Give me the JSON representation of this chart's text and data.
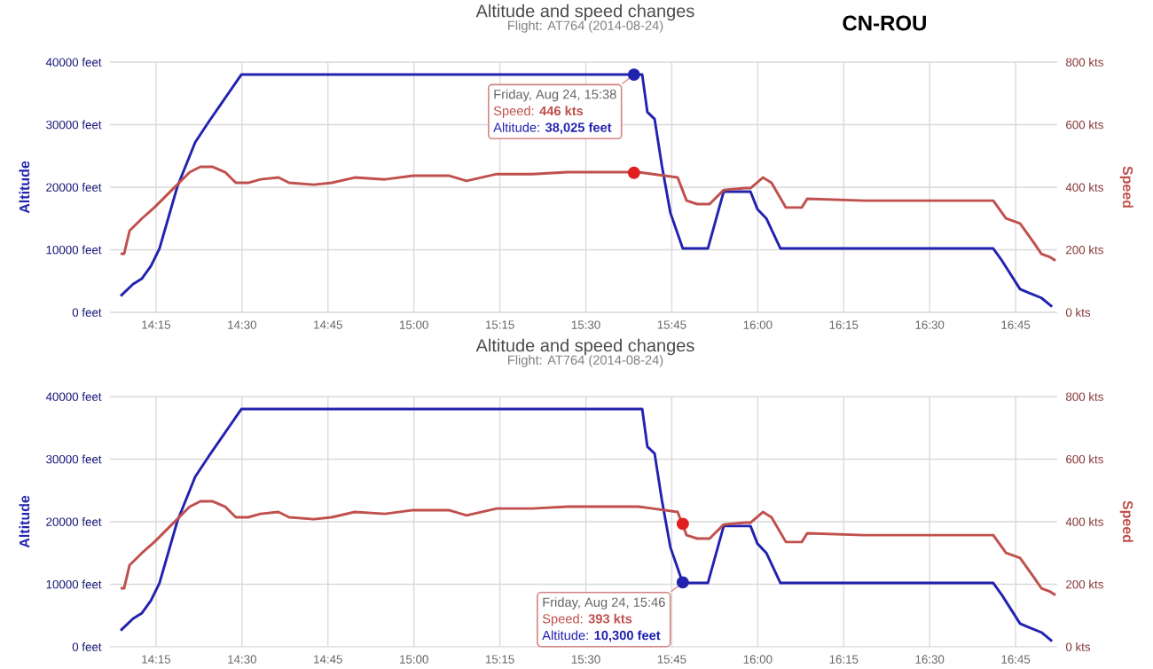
{
  "chart_data": [
    {
      "type": "line",
      "title": "Altitude and speed changes",
      "subtitle": "Flight: AT764 (2014-08-24)",
      "ylabel": "Altitude",
      "y2label": "Speed",
      "grid": true,
      "xlim": [
        14.116,
        16.871
      ],
      "xticks": [
        {
          "value": 14.25,
          "label": "14:15"
        },
        {
          "value": 14.5,
          "label": "14:30"
        },
        {
          "value": 14.75,
          "label": "14:45"
        },
        {
          "value": 15.0,
          "label": "15:00"
        },
        {
          "value": 15.25,
          "label": "15:15"
        },
        {
          "value": 15.5,
          "label": "15:30"
        },
        {
          "value": 15.75,
          "label": "15:45"
        },
        {
          "value": 16.0,
          "label": "16:00"
        },
        {
          "value": 16.25,
          "label": "16:15"
        },
        {
          "value": 16.5,
          "label": "16:30"
        },
        {
          "value": 16.75,
          "label": "16:45"
        }
      ],
      "ylim": [
        0,
        40000
      ],
      "yticks": [
        {
          "value": 0,
          "label": "0 feet"
        },
        {
          "value": 10000,
          "label": "10000 feet"
        },
        {
          "value": 20000,
          "label": "20000 feet"
        },
        {
          "value": 30000,
          "label": "30000 feet"
        },
        {
          "value": 40000,
          "label": "40000 feet"
        }
      ],
      "y2lim": [
        0,
        800
      ],
      "y2ticks": [
        {
          "value": 0,
          "label": "0 kts"
        },
        {
          "value": 200,
          "label": "200 kts"
        },
        {
          "value": 400,
          "label": "400 kts"
        },
        {
          "value": 600,
          "label": "600 kts"
        },
        {
          "value": 800,
          "label": "800 kts"
        }
      ],
      "series": [
        {
          "color": "#2222b0",
          "x": [
            14.147,
            14.183,
            14.209,
            14.235,
            14.26,
            14.312,
            14.364,
            14.405,
            14.498,
            15.664,
            15.679,
            15.7,
            15.721,
            15.746,
            15.782,
            15.855,
            15.901,
            15.979,
            15.999,
            16.025,
            16.066,
            16.685,
            16.711,
            16.763,
            16.789,
            16.825,
            16.856
          ],
          "values": [
            2600,
            4500,
            5400,
            7400,
            10200,
            20100,
            27200,
            30600,
            38000,
            38000,
            32000,
            30900,
            23500,
            15900,
            10200,
            10200,
            19300,
            19300,
            16500,
            15000,
            10200,
            10200,
            8200,
            3700,
            3100,
            2300,
            900
          ]
        },
        {
          "color": "#c0504d",
          "axis": "y2",
          "x": [
            14.147,
            14.157,
            14.173,
            14.209,
            14.245,
            14.296,
            14.348,
            14.379,
            14.415,
            14.451,
            14.482,
            14.518,
            14.554,
            14.606,
            14.637,
            14.709,
            14.761,
            14.828,
            14.916,
            14.998,
            15.101,
            15.153,
            15.241,
            15.344,
            15.447,
            15.653,
            15.695,
            15.767,
            15.793,
            15.824,
            15.86,
            15.901,
            15.963,
            15.979,
            16.015,
            16.04,
            16.082,
            16.128,
            16.144,
            16.309,
            16.479,
            16.685,
            16.722,
            16.763,
            16.804,
            16.825,
            16.851,
            16.866
          ],
          "values": [
            187,
            187,
            261,
            300,
            335,
            391,
            448,
            465,
            465,
            448,
            414,
            414,
            425,
            431,
            414,
            408,
            414,
            431,
            425,
            437,
            437,
            420,
            442,
            442,
            448,
            448,
            442,
            431,
            357,
            346,
            346,
            391,
            397,
            397,
            431,
            414,
            335,
            335,
            363,
            357,
            357,
            357,
            300,
            284,
            221,
            187,
            176,
            165
          ]
        },
        {
          "type": "scatter",
          "color": "#2222b0",
          "x": [
            15.64
          ],
          "values": [
            38000
          ]
        },
        {
          "type": "scatter",
          "color": "#e02020",
          "axis": "y2",
          "x": [
            15.64
          ],
          "values": [
            446
          ]
        }
      ],
      "annotations": [
        "CN-ROU",
        {
          "text": "Friday, Aug 24, 15:38",
          "x": 15.64,
          "y": 38025
        },
        "Speed: **446 kts**",
        "Altitude: **38,025 feet**"
      ]
    },
    {
      "type": "line",
      "title": "Altitude and speed changes",
      "subtitle": "Flight: AT764 (2014-08-24)",
      "ylabel": "Altitude",
      "y2label": "Speed",
      "grid": true,
      "xlim": [
        14.116,
        16.871
      ],
      "xticks": [
        {
          "value": 14.25,
          "label": "14:15"
        },
        {
          "value": 14.5,
          "label": "14:30"
        },
        {
          "value": 14.75,
          "label": "14:45"
        },
        {
          "value": 15.0,
          "label": "15:00"
        },
        {
          "value": 15.25,
          "label": "15:15"
        },
        {
          "value": 15.5,
          "label": "15:30"
        },
        {
          "value": 15.75,
          "label": "15:45"
        },
        {
          "value": 16.0,
          "label": "16:00"
        },
        {
          "value": 16.25,
          "label": "16:15"
        },
        {
          "value": 16.5,
          "label": "16:30"
        },
        {
          "value": 16.75,
          "label": "16:45"
        }
      ],
      "ylim": [
        0,
        40000
      ],
      "yticks": [
        {
          "value": 0,
          "label": "0 feet"
        },
        {
          "value": 10000,
          "label": "10000 feet"
        },
        {
          "value": 20000,
          "label": "20000 feet"
        },
        {
          "value": 30000,
          "label": "30000 feet"
        },
        {
          "value": 40000,
          "label": "40000 feet"
        }
      ],
      "y2lim": [
        0,
        800
      ],
      "y2ticks": [
        {
          "value": 0,
          "label": "0 kts"
        },
        {
          "value": 200,
          "label": "200 kts"
        },
        {
          "value": 400,
          "label": "400 kts"
        },
        {
          "value": 600,
          "label": "600 kts"
        },
        {
          "value": 800,
          "label": "800 kts"
        }
      ],
      "series": [
        {
          "color": "#2222b0",
          "x": [
            14.147,
            14.183,
            14.209,
            14.235,
            14.26,
            14.312,
            14.364,
            14.405,
            14.498,
            15.664,
            15.679,
            15.7,
            15.721,
            15.746,
            15.782,
            15.855,
            15.901,
            15.979,
            15.999,
            16.025,
            16.066,
            16.685,
            16.711,
            16.763,
            16.789,
            16.825,
            16.856
          ],
          "values": [
            2600,
            4500,
            5400,
            7400,
            10200,
            20100,
            27200,
            30600,
            38000,
            38000,
            32000,
            30900,
            23500,
            15900,
            10200,
            10200,
            19300,
            19300,
            16500,
            15000,
            10200,
            10200,
            8200,
            3700,
            3100,
            2300,
            900
          ]
        },
        {
          "color": "#c0504d",
          "axis": "y2",
          "x": [
            14.147,
            14.157,
            14.173,
            14.209,
            14.245,
            14.296,
            14.348,
            14.379,
            14.415,
            14.451,
            14.482,
            14.518,
            14.554,
            14.606,
            14.637,
            14.709,
            14.761,
            14.828,
            14.916,
            14.998,
            15.101,
            15.153,
            15.241,
            15.344,
            15.447,
            15.653,
            15.695,
            15.767,
            15.793,
            15.824,
            15.86,
            15.901,
            15.963,
            15.979,
            16.015,
            16.04,
            16.082,
            16.128,
            16.144,
            16.309,
            16.479,
            16.685,
            16.722,
            16.763,
            16.804,
            16.825,
            16.851,
            16.866
          ],
          "values": [
            187,
            187,
            261,
            300,
            335,
            391,
            448,
            465,
            465,
            448,
            414,
            414,
            425,
            431,
            414,
            408,
            414,
            431,
            425,
            437,
            437,
            420,
            442,
            442,
            448,
            448,
            442,
            431,
            357,
            346,
            346,
            391,
            397,
            397,
            431,
            414,
            335,
            335,
            363,
            357,
            357,
            357,
            300,
            284,
            221,
            187,
            176,
            165
          ]
        },
        {
          "type": "scatter",
          "color": "#2222b0",
          "x": [
            15.782
          ],
          "values": [
            10300
          ]
        },
        {
          "type": "scatter",
          "color": "#e02020",
          "axis": "y2",
          "x": [
            15.782
          ],
          "values": [
            393
          ]
        }
      ],
      "annotations": [
        {
          "text": "Friday, Aug 24, 15:46",
          "x": 15.782,
          "y": 10300
        },
        "Speed: **393 kts**",
        "Altitude: **10,300 feet**"
      ]
    }
  ]
}
